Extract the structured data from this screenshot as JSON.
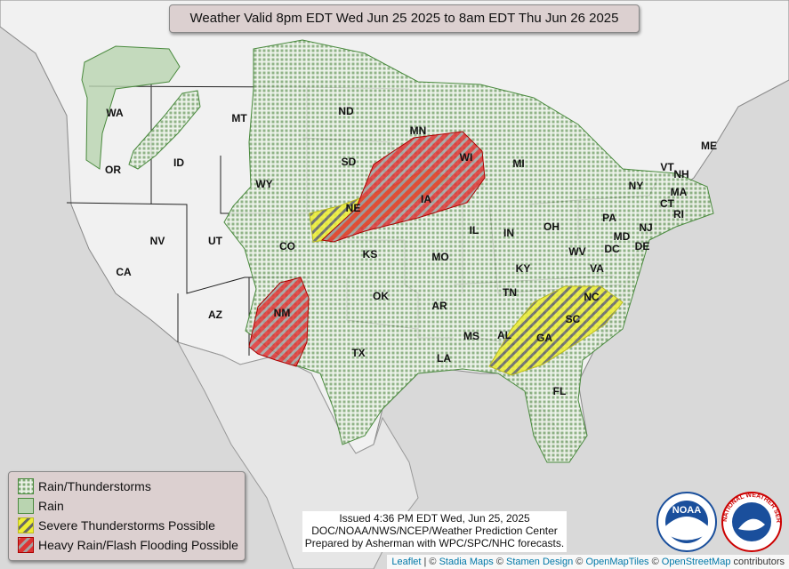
{
  "title": "Weather Valid 8pm EDT Wed Jun 25 2025 to 8am EDT Thu Jun 26 2025",
  "state_labels": [
    "WA",
    "OR",
    "ID",
    "MT",
    "ND",
    "SD",
    "WY",
    "NV",
    "CA",
    "UT",
    "CO",
    "NE",
    "KS",
    "AZ",
    "NM",
    "OK",
    "TX",
    "MN",
    "IA",
    "MO",
    "AR",
    "LA",
    "WI",
    "IL",
    "MI",
    "IN",
    "OH",
    "KY",
    "TN",
    "MS",
    "AL",
    "GA",
    "SC",
    "NC",
    "VA",
    "WV",
    "PA",
    "NY",
    "MD",
    "DE",
    "NJ",
    "CT",
    "RI",
    "MA",
    "VT",
    "NH",
    "ME",
    "DC",
    "FL"
  ],
  "legend": [
    "Rain/Thunderstorms",
    "Rain",
    "Severe Thunderstorms Possible",
    "Heavy Rain/Flash Flooding Possible"
  ],
  "issued": [
    "Issued  4:36 PM EDT  Wed, Jun 25, 2025",
    "DOC/NOAA/NWS/NCEP/Weather Prediction Center",
    "Prepared by Asherman with WPC/SPC/NHC forecasts."
  ],
  "attribution": {
    "links": [
      "Leaflet",
      "Stadia Maps",
      "Stamen Design",
      "OpenMapTiles",
      "OpenStreetMap"
    ],
    "separator": "|",
    "copyright": "©",
    "suffix": "contributors"
  },
  "logos": {
    "noaa": "NOAA",
    "nws": "NATIONAL WEATHER SERVICE"
  }
}
